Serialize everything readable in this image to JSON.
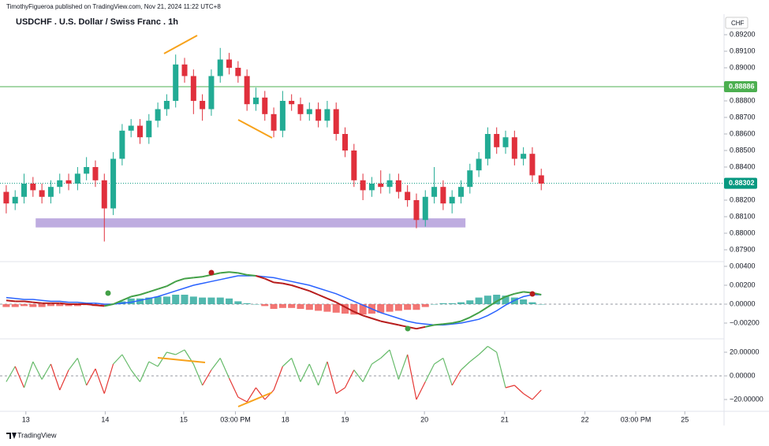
{
  "header": "TimothyFigueroa published on TradingView.com, Nov 21, 2024 11:22 UTC+8",
  "footer": "TradingView",
  "chart_data": [
    {
      "type": "candlestick",
      "title": "USDCHF . U.S. Dollar / Swiss Franc . 1h",
      "currency": "CHF",
      "up_color": "#22ab94",
      "down_color": "#e0303c",
      "open": [
        0.8825,
        0.8818,
        0.8822,
        0.883,
        0.8826,
        0.8822,
        0.8828,
        0.8832,
        0.883,
        0.8836,
        0.884,
        0.8832,
        0.8815,
        0.8845,
        0.8862,
        0.8865,
        0.8858,
        0.8868,
        0.8875,
        0.888,
        0.8902,
        0.8895,
        0.888,
        0.8875,
        0.8895,
        0.8905,
        0.89,
        0.8895,
        0.8878,
        0.8882,
        0.8872,
        0.8862,
        0.888,
        0.8878,
        0.8872,
        0.8875,
        0.8868,
        0.8875,
        0.886,
        0.885,
        0.8832,
        0.8826,
        0.883,
        0.8828,
        0.8832,
        0.8825,
        0.882,
        0.8808,
        0.8822,
        0.8828,
        0.8818,
        0.8822,
        0.8828,
        0.8838,
        0.8845,
        0.886,
        0.8852,
        0.8858,
        0.8845,
        0.8848,
        0.8835
      ],
      "high": [
        0.8829,
        0.8826,
        0.8836,
        0.8834,
        0.883,
        0.8832,
        0.8836,
        0.8836,
        0.884,
        0.8846,
        0.8844,
        0.8836,
        0.8849,
        0.8866,
        0.8869,
        0.8869,
        0.8872,
        0.8879,
        0.8884,
        0.8908,
        0.8906,
        0.8899,
        0.8884,
        0.8899,
        0.8912,
        0.8909,
        0.8904,
        0.8899,
        0.8888,
        0.8886,
        0.8876,
        0.8886,
        0.8884,
        0.8882,
        0.8879,
        0.8879,
        0.888,
        0.8879,
        0.8864,
        0.8854,
        0.8836,
        0.8834,
        0.8838,
        0.8836,
        0.8836,
        0.8829,
        0.8824,
        0.8826,
        0.884,
        0.8832,
        0.8826,
        0.8832,
        0.8842,
        0.8849,
        0.8864,
        0.8864,
        0.8862,
        0.8862,
        0.8852,
        0.8852,
        0.8839
      ],
      "low": [
        0.8812,
        0.8814,
        0.8818,
        0.8822,
        0.8818,
        0.8818,
        0.8824,
        0.8826,
        0.8826,
        0.8832,
        0.8828,
        0.8795,
        0.8811,
        0.8841,
        0.8858,
        0.8854,
        0.8854,
        0.8864,
        0.8871,
        0.8876,
        0.8891,
        0.8872,
        0.8868,
        0.8871,
        0.8891,
        0.8896,
        0.8891,
        0.8874,
        0.8874,
        0.8868,
        0.8858,
        0.8858,
        0.8874,
        0.8868,
        0.8868,
        0.8864,
        0.8864,
        0.8856,
        0.8846,
        0.8828,
        0.882,
        0.8822,
        0.8824,
        0.8824,
        0.8821,
        0.8816,
        0.8803,
        0.8804,
        0.8818,
        0.8814,
        0.8812,
        0.8818,
        0.8824,
        0.8834,
        0.8841,
        0.8848,
        0.8848,
        0.8841,
        0.8841,
        0.8831,
        0.8826
      ],
      "close": [
        0.8818,
        0.8822,
        0.883,
        0.8826,
        0.8822,
        0.8828,
        0.8832,
        0.883,
        0.8836,
        0.884,
        0.8832,
        0.8815,
        0.8845,
        0.8862,
        0.8865,
        0.8858,
        0.8868,
        0.8875,
        0.888,
        0.8902,
        0.8895,
        0.888,
        0.8875,
        0.8895,
        0.8905,
        0.89,
        0.8895,
        0.8878,
        0.8882,
        0.8872,
        0.8862,
        0.888,
        0.8878,
        0.8872,
        0.8875,
        0.8868,
        0.8875,
        0.886,
        0.885,
        0.8832,
        0.8826,
        0.883,
        0.8828,
        0.8832,
        0.8825,
        0.882,
        0.8808,
        0.8822,
        0.8828,
        0.8818,
        0.8822,
        0.8828,
        0.8838,
        0.8845,
        0.886,
        0.8852,
        0.8858,
        0.8845,
        0.8848,
        0.8835,
        0.883
      ],
      "price_lines": [
        {
          "value": 0.88886,
          "label": "0.88886",
          "color": "#4caf50",
          "style": "solid"
        },
        {
          "value": 0.88302,
          "label": "0.88302",
          "color": "#089981",
          "style": "dotted"
        }
      ],
      "zone": {
        "from": 0.88035,
        "to": 0.8809,
        "start": 3.3,
        "end": 51.5,
        "color": "#b39ddb"
      },
      "xlim": [
        -0.7,
        80.5
      ],
      "xticks": [
        {
          "value": 2.2,
          "label": "13"
        },
        {
          "value": 11.1,
          "label": "14"
        },
        {
          "value": 19.9,
          "label": "15"
        },
        {
          "value": 25.7,
          "label": "03:00 PM"
        },
        {
          "value": 31.3,
          "label": "18"
        },
        {
          "value": 38.0,
          "label": "19"
        },
        {
          "value": 46.9,
          "label": "20"
        },
        {
          "value": 55.9,
          "label": "21"
        },
        {
          "value": 64.9,
          "label": "22"
        },
        {
          "value": 70.6,
          "label": "03:00 PM"
        },
        {
          "value": 76.1,
          "label": "25"
        }
      ],
      "ylim": [
        0.87838,
        0.89243
      ],
      "yticks": [
        {
          "value": 0.879,
          "label": "0.87900"
        },
        {
          "value": 0.88,
          "label": "0.88000"
        },
        {
          "value": 0.881,
          "label": "0.88100"
        },
        {
          "value": 0.882,
          "label": "0.88200"
        },
        {
          "value": 0.884,
          "label": "0.88400"
        },
        {
          "value": 0.885,
          "label": "0.88500"
        },
        {
          "value": 0.886,
          "label": "0.88600"
        },
        {
          "value": 0.887,
          "label": "0.88700"
        },
        {
          "value": 0.888,
          "label": "0.88800"
        },
        {
          "value": 0.89,
          "label": "0.89000"
        },
        {
          "value": 0.891,
          "label": "0.89100"
        },
        {
          "value": 0.892,
          "label": "0.89200"
        }
      ]
    },
    {
      "type": "macd",
      "up_color": "#43a047",
      "down_color": "#b71c1c",
      "signal_color": "#2962ff",
      "hist_up_color": "#26a69a",
      "hist_down_color": "#ef5350",
      "macd": [
        0.0004,
        0.0003,
        0.0003,
        0.0002,
        0.0001,
        0.0001,
        0.0001,
        0.0,
        0.0,
        0.0,
        -0.0001,
        -0.0002,
        0.0,
        0.0004,
        0.0008,
        0.001,
        0.0013,
        0.0016,
        0.0019,
        0.0024,
        0.0027,
        0.0028,
        0.0029,
        0.0031,
        0.0033,
        0.0034,
        0.0033,
        0.0031,
        0.003,
        0.0027,
        0.0023,
        0.0022,
        0.002,
        0.0017,
        0.0014,
        0.001,
        0.0006,
        0.0002,
        -0.0003,
        -0.0008,
        -0.0012,
        -0.0015,
        -0.0018,
        -0.002,
        -0.0022,
        -0.0024,
        -0.0026,
        -0.0024,
        -0.0022,
        -0.0021,
        -0.002,
        -0.0018,
        -0.0014,
        -0.0009,
        -0.0003,
        0.0003,
        0.0008,
        0.0011,
        0.0013,
        0.0012,
        0.001
      ],
      "signal": [
        0.0007,
        0.0006,
        0.0005,
        0.0005,
        0.0004,
        0.0003,
        0.0003,
        0.0002,
        0.0002,
        0.0001,
        0.0001,
        0.0,
        0.0,
        0.0001,
        0.0002,
        0.0004,
        0.0006,
        0.0008,
        0.0011,
        0.0014,
        0.0017,
        0.002,
        0.0022,
        0.0024,
        0.0026,
        0.0028,
        0.003,
        0.003,
        0.003,
        0.0029,
        0.0028,
        0.0026,
        0.0024,
        0.0022,
        0.002,
        0.0017,
        0.0014,
        0.0011,
        0.0007,
        0.0003,
        -0.0001,
        -0.0005,
        -0.0009,
        -0.0012,
        -0.0015,
        -0.0018,
        -0.002,
        -0.0021,
        -0.0022,
        -0.0022,
        -0.0021,
        -0.002,
        -0.0018,
        -0.0016,
        -0.0012,
        -0.0007,
        -0.0001,
        0.0004,
        0.0008,
        0.001,
        0.001
      ],
      "histogram": [
        -0.0003,
        -0.0003,
        -0.0002,
        -0.0003,
        -0.0003,
        -0.0002,
        -0.0002,
        -0.0002,
        -0.0002,
        -0.0001,
        -0.0002,
        -0.0002,
        0.0,
        0.0003,
        0.0006,
        0.0006,
        0.0007,
        0.0008,
        0.0008,
        0.001,
        0.001,
        0.0008,
        0.0007,
        0.0007,
        0.0007,
        0.0006,
        0.0003,
        0.0001,
        0.0,
        -0.0002,
        -0.0005,
        -0.0004,
        -0.0004,
        -0.0005,
        -0.0006,
        -0.0007,
        -0.0008,
        -0.0009,
        -0.001,
        -0.0011,
        -0.0011,
        -0.001,
        -0.0009,
        -0.0008,
        -0.0007,
        -0.0006,
        -0.0006,
        -0.0003,
        0.0,
        0.0001,
        0.0001,
        0.0002,
        0.0004,
        0.0007,
        0.0009,
        0.001,
        0.0009,
        0.0007,
        0.0005,
        0.0002,
        0.0
      ],
      "ylim": [
        -0.0035,
        0.00425
      ],
      "yticks": [
        {
          "value": -0.002,
          "label": "−0.00200"
        },
        {
          "value": 0,
          "label": "0.00000"
        },
        {
          "value": 0.002,
          "label": "0.00200"
        },
        {
          "value": 0.004,
          "label": "0.00400"
        }
      ]
    },
    {
      "type": "oscillator",
      "up_color": "#66bb6a",
      "down_color": "#e53935",
      "values": [
        -5,
        8,
        -10,
        12,
        -3,
        10,
        -12,
        5,
        15,
        -8,
        6,
        -15,
        10,
        18,
        5,
        -5,
        12,
        8,
        20,
        18,
        22,
        10,
        -8,
        5,
        15,
        -2,
        -18,
        -22,
        -10,
        -20,
        -12,
        8,
        15,
        -5,
        10,
        -8,
        12,
        -15,
        -10,
        5,
        -5,
        10,
        15,
        22,
        -3,
        18,
        -20,
        -5,
        10,
        15,
        -8,
        5,
        12,
        18,
        25,
        20,
        -10,
        -8,
        -15,
        -20,
        -12
      ],
      "ylim": [
        -30,
        28
      ],
      "yticks": [
        {
          "value": -20,
          "label": "−20.00000"
        },
        {
          "value": 0,
          "label": "0.00000"
        },
        {
          "value": 20,
          "label": "20.00000"
        }
      ]
    }
  ]
}
